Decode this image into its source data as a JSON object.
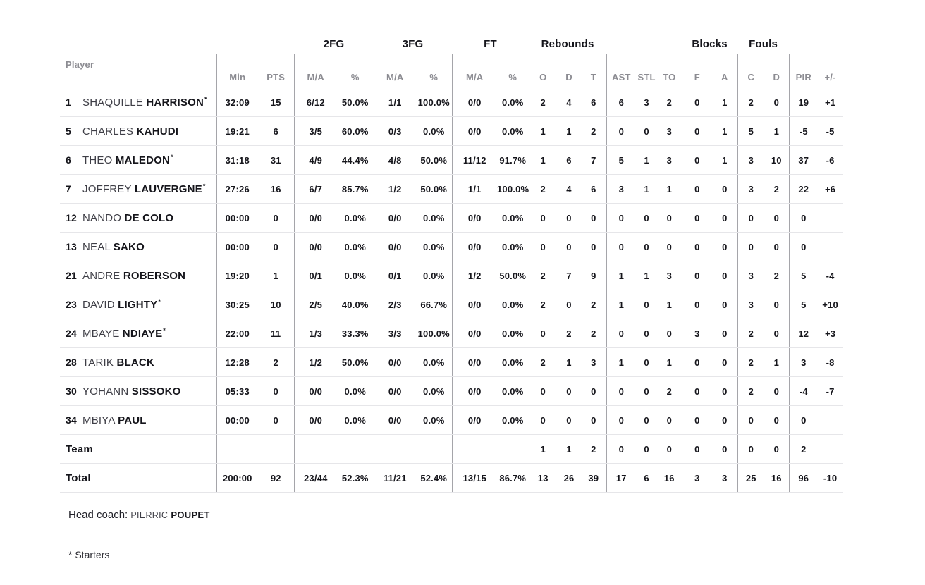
{
  "table": {
    "player_header": "Player",
    "groups": [
      "2FG",
      "3FG",
      "FT",
      "Rebounds",
      "Blocks",
      "Fouls"
    ],
    "columns": [
      "Min",
      "PTS",
      "M/A",
      "%",
      "M/A",
      "%",
      "M/A",
      "%",
      "O",
      "D",
      "T",
      "AST",
      "STL",
      "TO",
      "F",
      "A",
      "C",
      "D",
      "PIR",
      "+/-"
    ],
    "starter_marker": "*",
    "rows": [
      {
        "number": "1",
        "first": "SHAQUILLE",
        "last": "HARRISON",
        "starter": true,
        "stats": [
          "32:09",
          "15",
          "6/12",
          "50.0%",
          "1/1",
          "100.0%",
          "0/0",
          "0.0%",
          "2",
          "4",
          "6",
          "6",
          "3",
          "2",
          "0",
          "1",
          "2",
          "0",
          "19",
          "+1"
        ]
      },
      {
        "number": "5",
        "first": "CHARLES",
        "last": "KAHUDI",
        "starter": false,
        "stats": [
          "19:21",
          "6",
          "3/5",
          "60.0%",
          "0/3",
          "0.0%",
          "0/0",
          "0.0%",
          "1",
          "1",
          "2",
          "0",
          "0",
          "3",
          "0",
          "1",
          "5",
          "1",
          "-5",
          "-5"
        ]
      },
      {
        "number": "6",
        "first": "THEO",
        "last": "MALEDON",
        "starter": true,
        "stats": [
          "31:18",
          "31",
          "4/9",
          "44.4%",
          "4/8",
          "50.0%",
          "11/12",
          "91.7%",
          "1",
          "6",
          "7",
          "5",
          "1",
          "3",
          "0",
          "1",
          "3",
          "10",
          "37",
          "-6"
        ]
      },
      {
        "number": "7",
        "first": "JOFFREY",
        "last": "LAUVERGNE",
        "starter": true,
        "stats": [
          "27:26",
          "16",
          "6/7",
          "85.7%",
          "1/2",
          "50.0%",
          "1/1",
          "100.0%",
          "2",
          "4",
          "6",
          "3",
          "1",
          "1",
          "0",
          "0",
          "3",
          "2",
          "22",
          "+6"
        ]
      },
      {
        "number": "12",
        "first": "NANDO",
        "last": "DE COLO",
        "starter": false,
        "stats": [
          "00:00",
          "0",
          "0/0",
          "0.0%",
          "0/0",
          "0.0%",
          "0/0",
          "0.0%",
          "0",
          "0",
          "0",
          "0",
          "0",
          "0",
          "0",
          "0",
          "0",
          "0",
          "0",
          ""
        ]
      },
      {
        "number": "13",
        "first": "NEAL",
        "last": "SAKO",
        "starter": false,
        "stats": [
          "00:00",
          "0",
          "0/0",
          "0.0%",
          "0/0",
          "0.0%",
          "0/0",
          "0.0%",
          "0",
          "0",
          "0",
          "0",
          "0",
          "0",
          "0",
          "0",
          "0",
          "0",
          "0",
          ""
        ]
      },
      {
        "number": "21",
        "first": "ANDRE",
        "last": "ROBERSON",
        "starter": false,
        "stats": [
          "19:20",
          "1",
          "0/1",
          "0.0%",
          "0/1",
          "0.0%",
          "1/2",
          "50.0%",
          "2",
          "7",
          "9",
          "1",
          "1",
          "3",
          "0",
          "0",
          "3",
          "2",
          "5",
          "-4"
        ]
      },
      {
        "number": "23",
        "first": "DAVID",
        "last": "LIGHTY",
        "starter": true,
        "stats": [
          "30:25",
          "10",
          "2/5",
          "40.0%",
          "2/3",
          "66.7%",
          "0/0",
          "0.0%",
          "2",
          "0",
          "2",
          "1",
          "0",
          "1",
          "0",
          "0",
          "3",
          "0",
          "5",
          "+10"
        ]
      },
      {
        "number": "24",
        "first": "MBAYE",
        "last": "NDIAYE",
        "starter": true,
        "stats": [
          "22:00",
          "11",
          "1/3",
          "33.3%",
          "3/3",
          "100.0%",
          "0/0",
          "0.0%",
          "0",
          "2",
          "2",
          "0",
          "0",
          "0",
          "3",
          "0",
          "2",
          "0",
          "12",
          "+3"
        ]
      },
      {
        "number": "28",
        "first": "TARIK",
        "last": "BLACK",
        "starter": false,
        "stats": [
          "12:28",
          "2",
          "1/2",
          "50.0%",
          "0/0",
          "0.0%",
          "0/0",
          "0.0%",
          "2",
          "1",
          "3",
          "1",
          "0",
          "1",
          "0",
          "0",
          "2",
          "1",
          "3",
          "-8"
        ]
      },
      {
        "number": "30",
        "first": "YOHANN",
        "last": "SISSOKO",
        "starter": false,
        "stats": [
          "05:33",
          "0",
          "0/0",
          "0.0%",
          "0/0",
          "0.0%",
          "0/0",
          "0.0%",
          "0",
          "0",
          "0",
          "0",
          "0",
          "2",
          "0",
          "0",
          "2",
          "0",
          "-4",
          "-7"
        ]
      },
      {
        "number": "34",
        "first": "MBIYA",
        "last": "PAUL",
        "starter": false,
        "stats": [
          "00:00",
          "0",
          "0/0",
          "0.0%",
          "0/0",
          "0.0%",
          "0/0",
          "0.0%",
          "0",
          "0",
          "0",
          "0",
          "0",
          "0",
          "0",
          "0",
          "0",
          "0",
          "0",
          ""
        ]
      },
      {
        "label": "Team",
        "stats": [
          "",
          "",
          "",
          "",
          "",
          "",
          "",
          "",
          "1",
          "1",
          "2",
          "0",
          "0",
          "0",
          "0",
          "0",
          "0",
          "0",
          "2",
          ""
        ]
      },
      {
        "label": "Total",
        "stats": [
          "200:00",
          "92",
          "23/44",
          "52.3%",
          "11/21",
          "52.4%",
          "13/15",
          "86.7%",
          "13",
          "26",
          "39",
          "17",
          "6",
          "16",
          "3",
          "3",
          "25",
          "16",
          "96",
          "-10"
        ]
      }
    ]
  },
  "footer": {
    "head_coach_label": "Head coach:",
    "coach_first": "PIERRIC",
    "coach_last": "POUPET",
    "starters_note": "* Starters"
  },
  "colors": {
    "text_dark": "#15151b",
    "text_gray_header": "#8c8c92",
    "text_first_name": "#3e3e46",
    "divider_vertical": "#a5a5aa",
    "divider_horizontal": "#e6e6e9",
    "background": "#ffffff"
  }
}
